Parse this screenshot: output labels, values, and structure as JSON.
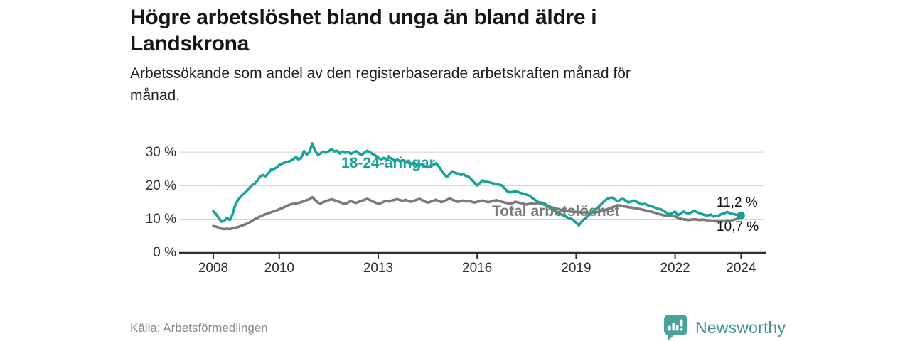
{
  "header": {
    "title_lines": [
      "Högre arbetslöshet bland unga än bland äldre i",
      "Landskrona"
    ],
    "subtitle_lines": [
      "Arbetssökande som andel av den registerbaserade arbetskraften månad för",
      "månad."
    ]
  },
  "footer": {
    "source": "Källa: Arbetsförmedlingen",
    "brand": "Newsworthy",
    "brand_icon": "speech-bubble-bar-chart-icon",
    "brand_color": "#3a928a"
  },
  "chart_data": {
    "type": "line",
    "title": "Högre arbetslöshet bland unga än bland äldre i Landskrona",
    "subtitle": "Arbetssökande som andel av den registerbaserade arbetskraften månad för månad.",
    "xlabel": "",
    "ylabel": "",
    "yunit": "%",
    "ylim": [
      0,
      35
    ],
    "grid": "horizontal",
    "x_start": "2008-01",
    "x_end": "2024-01",
    "x_step": "month",
    "x_tick_labels": [
      "2008",
      "2010",
      "2013",
      "2016",
      "2019",
      "2022",
      "2024"
    ],
    "y_tick_labels": [
      "0 %",
      "10 %",
      "20 %",
      "30 %"
    ],
    "series": [
      {
        "name": "18-24-åringar",
        "color": "#17a398",
        "end_label": "11,2 %",
        "end_value": 11.2,
        "values": [
          12.4,
          11.5,
          10.4,
          9.3,
          9.6,
          10.4,
          9.8,
          11.5,
          14.3,
          15.8,
          16.8,
          17.6,
          18.3,
          19.2,
          20.1,
          20.6,
          21.5,
          22.7,
          23.2,
          22.8,
          23.6,
          24.8,
          25.0,
          25.4,
          26.2,
          26.6,
          26.9,
          27.1,
          27.4,
          27.8,
          28.6,
          27.8,
          28.3,
          30.3,
          29.3,
          30.0,
          32.6,
          30.5,
          29.2,
          29.6,
          30.2,
          29.8,
          30.3,
          30.9,
          30.2,
          30.4,
          29.6,
          30.2,
          29.8,
          30.1,
          29.5,
          29.9,
          30.3,
          29.6,
          29.2,
          29.8,
          30.4,
          30.0,
          29.4,
          29.0,
          28.4,
          27.8,
          28.3,
          27.9,
          28.5,
          28.0,
          27.4,
          27.8,
          27.2,
          27.6,
          27.0,
          26.8,
          26.5,
          26.9,
          26.3,
          26.0,
          26.4,
          25.8,
          25.5,
          25.9,
          26.2,
          26.7,
          25.8,
          24.6,
          23.4,
          22.6,
          23.5,
          24.3,
          23.8,
          23.6,
          23.2,
          23.4,
          22.9,
          22.6,
          21.8,
          20.9,
          20.1,
          20.8,
          21.6,
          21.2,
          21.1,
          20.9,
          20.7,
          20.5,
          20.3,
          20.1,
          19.2,
          18.3,
          18.0,
          18.2,
          18.4,
          18.1,
          17.8,
          17.6,
          17.3,
          17.0,
          16.4,
          15.8,
          15.2,
          15.0,
          14.9,
          14.4,
          13.8,
          13.2,
          12.6,
          12.1,
          11.7,
          11.3,
          10.9,
          10.5,
          10.2,
          9.8,
          9.0,
          8.2,
          9.3,
          10.1,
          10.8,
          11.5,
          12.2,
          12.9,
          13.6,
          14.4,
          15.2,
          15.9,
          16.3,
          16.5,
          16.0,
          15.4,
          15.8,
          16.1,
          15.6,
          15.0,
          15.3,
          15.6,
          15.2,
          14.8,
          14.4,
          14.6,
          14.2,
          14.0,
          13.7,
          13.4,
          13.1,
          12.9,
          12.4,
          11.9,
          11.4,
          11.9,
          12.3,
          11.2,
          11.7,
          12.3,
          11.9,
          11.8,
          12.1,
          12.5,
          12.1,
          11.8,
          11.5,
          11.2,
          11.2,
          11.4,
          10.8,
          11.0,
          11.2,
          11.6,
          11.8,
          12.2,
          11.8,
          11.6,
          11.4,
          11.3,
          11.2
        ]
      },
      {
        "name": "Total arbetslöshet",
        "color": "#7a7a7a",
        "end_label": "10,7 %",
        "end_value": 10.7,
        "values": [
          8.0,
          7.8,
          7.5,
          7.2,
          7.1,
          7.2,
          7.1,
          7.3,
          7.5,
          7.7,
          8.0,
          8.3,
          8.6,
          9.0,
          9.5,
          10.0,
          10.4,
          10.8,
          11.2,
          11.5,
          11.8,
          12.1,
          12.4,
          12.6,
          13.0,
          13.3,
          13.7,
          14.1,
          14.4,
          14.6,
          14.7,
          14.9,
          15.1,
          15.4,
          15.7,
          16.0,
          16.6,
          15.8,
          15.0,
          14.7,
          15.1,
          15.4,
          15.7,
          16.0,
          15.7,
          15.4,
          15.1,
          14.8,
          14.6,
          15.0,
          15.4,
          15.1,
          14.9,
          15.2,
          15.5,
          15.8,
          16.1,
          15.7,
          15.3,
          15.0,
          14.6,
          14.8,
          15.2,
          15.5,
          15.3,
          15.6,
          15.8,
          16.0,
          15.7,
          15.5,
          15.8,
          15.4,
          15.2,
          15.5,
          15.8,
          16.1,
          15.7,
          15.3,
          15.0,
          15.2,
          15.5,
          15.8,
          15.4,
          15.1,
          15.4,
          15.8,
          16.2,
          15.8,
          15.5,
          15.2,
          15.4,
          15.6,
          15.3,
          15.5,
          15.2,
          15.0,
          15.2,
          15.4,
          15.6,
          15.3,
          15.1,
          15.3,
          15.5,
          15.7,
          15.4,
          15.2,
          15.0,
          14.8,
          14.6,
          14.9,
          15.2,
          15.0,
          14.8,
          14.6,
          14.4,
          14.6,
          14.8,
          14.5,
          14.9,
          14.7,
          14.5,
          14.2,
          13.9,
          13.6,
          13.4,
          13.1,
          12.9,
          12.7,
          12.6,
          12.4,
          12.3,
          12.3,
          12.2,
          12.1,
          12.0,
          12.1,
          12.0,
          11.9,
          12.0,
          12.1,
          12.2,
          12.4,
          12.6,
          12.9,
          13.2,
          13.5,
          13.9,
          14.2,
          14.1,
          13.9,
          13.8,
          13.6,
          13.5,
          13.4,
          13.2,
          13.1,
          12.9,
          12.7,
          12.5,
          12.3,
          12.1,
          11.9,
          11.6,
          11.4,
          11.2,
          11.1,
          11.2,
          11.0,
          10.8,
          10.4,
          10.2,
          10.0,
          9.9,
          9.8,
          9.9,
          10.0,
          9.9,
          9.8,
          9.9,
          9.8,
          9.7,
          9.6,
          9.5,
          9.4,
          9.3,
          9.4,
          9.5,
          9.7,
          9.6,
          9.8,
          10.0,
          10.3,
          10.7
        ]
      }
    ]
  }
}
